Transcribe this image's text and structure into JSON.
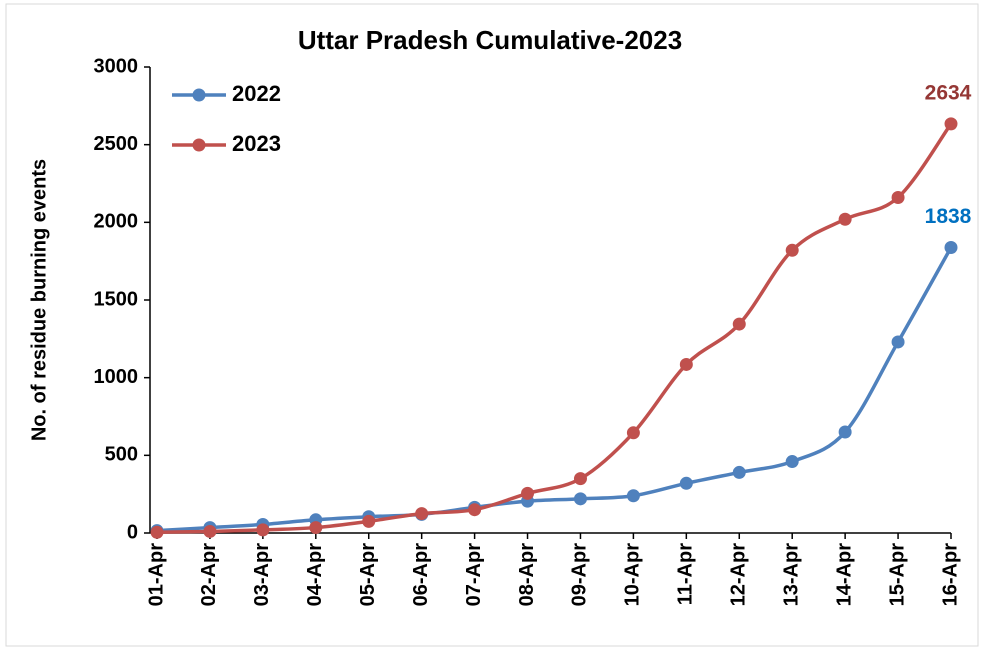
{
  "chart_data": {
    "type": "line",
    "title": "Uttar Pradesh Cumulative-2023",
    "y_label": "No. of residue burning events",
    "categories": [
      "01-Apr",
      "02-Apr",
      "03-Apr",
      "04-Apr",
      "05-Apr",
      "06-Apr",
      "07-Apr",
      "08-Apr",
      "09-Apr",
      "10-Apr",
      "11-Apr",
      "12-Apr",
      "13-Apr",
      "14-Apr",
      "15-Apr",
      "16-Apr"
    ],
    "series": [
      {
        "name": "2022",
        "color": "#4f81bd",
        "label_color": "#0070c0",
        "values": [
          15,
          35,
          55,
          85,
          105,
          120,
          165,
          205,
          220,
          240,
          320,
          390,
          460,
          650,
          1230,
          1838
        ]
      },
      {
        "name": "2023",
        "color": "#c0504d",
        "label_color": "#953735",
        "values": [
          5,
          10,
          20,
          35,
          75,
          125,
          150,
          255,
          350,
          645,
          1085,
          1345,
          1820,
          2020,
          2160,
          2634
        ]
      }
    ],
    "ylim": [
      0,
      3000
    ],
    "yticks": [
      0,
      500,
      1000,
      1500,
      2000,
      2500,
      3000
    ],
    "smooth": true,
    "legend": "top-left"
  }
}
